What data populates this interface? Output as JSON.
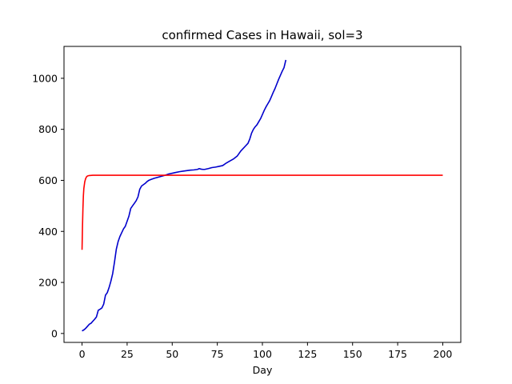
{
  "chart_data": {
    "type": "line",
    "title": "confirmed Cases in Hawaii, sol=3",
    "xlabel": "Day",
    "ylabel": "",
    "xlim": [
      -10,
      210
    ],
    "ylim": [
      -35,
      1125
    ],
    "xticks": [
      0,
      25,
      50,
      75,
      100,
      125,
      150,
      175,
      200
    ],
    "yticks": [
      0,
      200,
      400,
      600,
      800,
      1000
    ],
    "grid": false,
    "legend": "none",
    "series": [
      {
        "color": "#0000cc",
        "x": [
          0,
          1,
          2,
          3,
          4,
          5,
          6,
          7,
          8,
          9,
          10,
          11,
          12,
          13,
          14,
          15,
          16,
          17,
          18,
          19,
          20,
          21,
          22,
          23,
          24,
          25,
          26,
          27,
          28,
          29,
          30,
          31,
          32,
          33,
          34,
          35,
          36,
          37,
          38,
          40,
          42,
          44,
          46,
          48,
          50,
          52,
          54,
          56,
          58,
          60,
          62,
          64,
          65,
          66,
          67,
          68,
          70,
          72,
          74,
          76,
          78,
          80,
          82,
          84,
          86,
          88,
          90,
          92,
          93,
          94,
          95,
          96,
          97,
          98,
          99,
          100,
          101,
          102,
          103,
          104,
          105,
          106,
          107,
          108,
          109,
          110,
          111,
          112,
          113
        ],
        "values": [
          10,
          14,
          20,
          28,
          36,
          40,
          48,
          56,
          65,
          91,
          95,
          100,
          115,
          150,
          160,
          180,
          205,
          235,
          280,
          330,
          360,
          380,
          395,
          410,
          420,
          440,
          460,
          490,
          500,
          510,
          520,
          535,
          565,
          578,
          583,
          588,
          595,
          600,
          603,
          608,
          612,
          616,
          620,
          625,
          628,
          631,
          634,
          636,
          638,
          640,
          641,
          643,
          646,
          644,
          643,
          643,
          646,
          650,
          652,
          655,
          658,
          668,
          676,
          684,
          695,
          715,
          730,
          745,
          762,
          785,
          800,
          810,
          818,
          830,
          842,
          858,
          874,
          888,
          900,
          912,
          928,
          945,
          960,
          978,
          996,
          1012,
          1028,
          1042,
          1072
        ]
      },
      {
        "color": "#ff0000",
        "x": [
          0,
          0.25,
          0.5,
          0.75,
          1,
          1.5,
          2,
          2.5,
          3,
          4,
          6,
          10,
          20,
          50,
          100,
          150,
          200
        ],
        "values": [
          328,
          420,
          490,
          540,
          568,
          594,
          607,
          614,
          617,
          619,
          620,
          620,
          620,
          620,
          620,
          620,
          620
        ]
      }
    ]
  }
}
